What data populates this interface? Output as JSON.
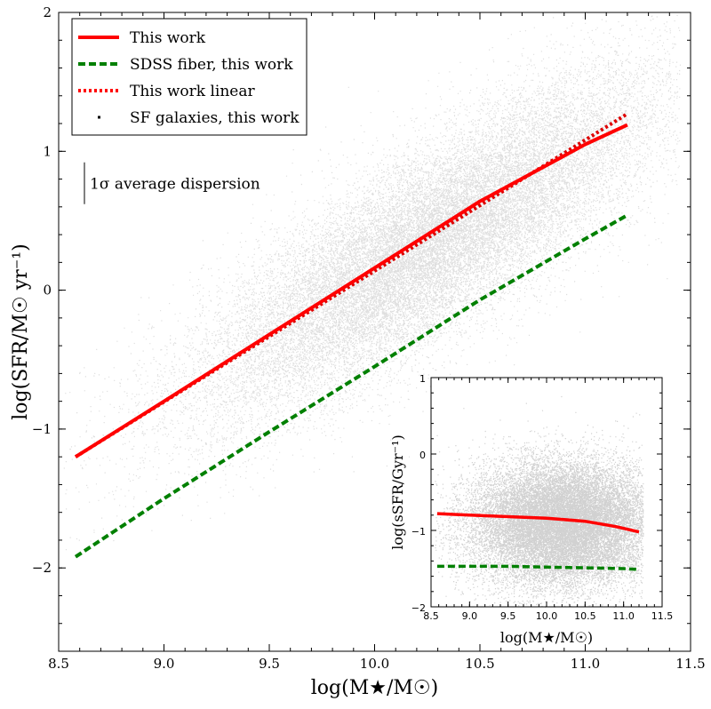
{
  "chart_data": [
    {
      "type": "scatter",
      "panel": "main",
      "xlabel": "log(M★/M☉)",
      "ylabel": "log(SFR/M☉ yr⁻¹)",
      "xlim": [
        8.5,
        11.5
      ],
      "ylim": [
        -2.6,
        2.0
      ],
      "x_ticks": [
        8.5,
        9.0,
        9.5,
        10.0,
        10.5,
        11.0,
        11.5
      ],
      "x_tick_labels": [
        "8.5",
        "9.0",
        "9.5",
        "10.0",
        "10.5",
        "11.0",
        "11.5"
      ],
      "y_ticks": [
        -2,
        -1,
        0,
        1,
        2
      ],
      "y_tick_labels": [
        "−2",
        "−1",
        "0",
        "1",
        "2"
      ],
      "legend_position": "top-left",
      "legend": [
        {
          "label": "This work",
          "style": "solid",
          "color": "#ff0000"
        },
        {
          "label": "SDSS fiber, this work",
          "style": "dashed",
          "color": "#008000"
        },
        {
          "label": "This work linear",
          "style": "dotted",
          "color": "#ff0000"
        },
        {
          "label": "SF galaxies, this work",
          "style": "point",
          "color": "#000000"
        }
      ],
      "annotation": "1σ average dispersion",
      "annotation_extent_dex": 0.3,
      "scatter_model": {
        "slope": 0.91,
        "intercept": -9.0,
        "center_x": 10.25,
        "spread_x": 0.55,
        "sigma_y": 0.35
      },
      "series": [
        {
          "name": "This work",
          "x": [
            8.58,
            9.0,
            9.5,
            10.0,
            10.5,
            11.0,
            11.2
          ],
          "y": [
            -1.2,
            -0.8,
            -0.32,
            0.16,
            0.64,
            1.05,
            1.19
          ]
        },
        {
          "name": "SDSS fiber, this work",
          "x": [
            8.58,
            9.0,
            9.5,
            10.0,
            10.5,
            11.0,
            11.2
          ],
          "y": [
            -1.92,
            -1.5,
            -1.02,
            -0.55,
            -0.07,
            0.37,
            0.54
          ]
        },
        {
          "name": "This work linear",
          "x": [
            8.58,
            11.2
          ],
          "y": [
            -1.2,
            1.27
          ]
        }
      ]
    },
    {
      "type": "scatter",
      "panel": "inset",
      "xlabel": "log(M★/M☉)",
      "ylabel": "log(sSFR/Gyr⁻¹)",
      "xlim": [
        8.5,
        11.5
      ],
      "ylim": [
        -2.0,
        1.0
      ],
      "x_ticks": [
        8.5,
        9.0,
        9.5,
        10.0,
        10.5,
        11.0,
        11.5
      ],
      "x_tick_labels": [
        "8.5",
        "9.0",
        "9.5",
        "10.0",
        "10.5",
        "11.0",
        "11.5"
      ],
      "y_ticks": [
        -2,
        -1,
        0,
        1
      ],
      "y_tick_labels": [
        "−2",
        "−1",
        "0",
        "1"
      ],
      "scatter_model": {
        "center_x": 10.2,
        "spread_x": 0.6,
        "center_y": -0.9,
        "sigma_y": 0.4
      },
      "series": [
        {
          "name": "This work",
          "x": [
            8.58,
            9.0,
            9.5,
            10.0,
            10.5,
            10.9,
            11.2
          ],
          "y": [
            -0.78,
            -0.8,
            -0.82,
            -0.84,
            -0.88,
            -0.95,
            -1.02
          ]
        },
        {
          "name": "SDSS fiber, this work",
          "x": [
            8.58,
            9.0,
            9.5,
            10.0,
            10.5,
            11.0,
            11.2
          ],
          "y": [
            -1.47,
            -1.47,
            -1.47,
            -1.48,
            -1.49,
            -1.5,
            -1.51
          ]
        }
      ]
    }
  ]
}
